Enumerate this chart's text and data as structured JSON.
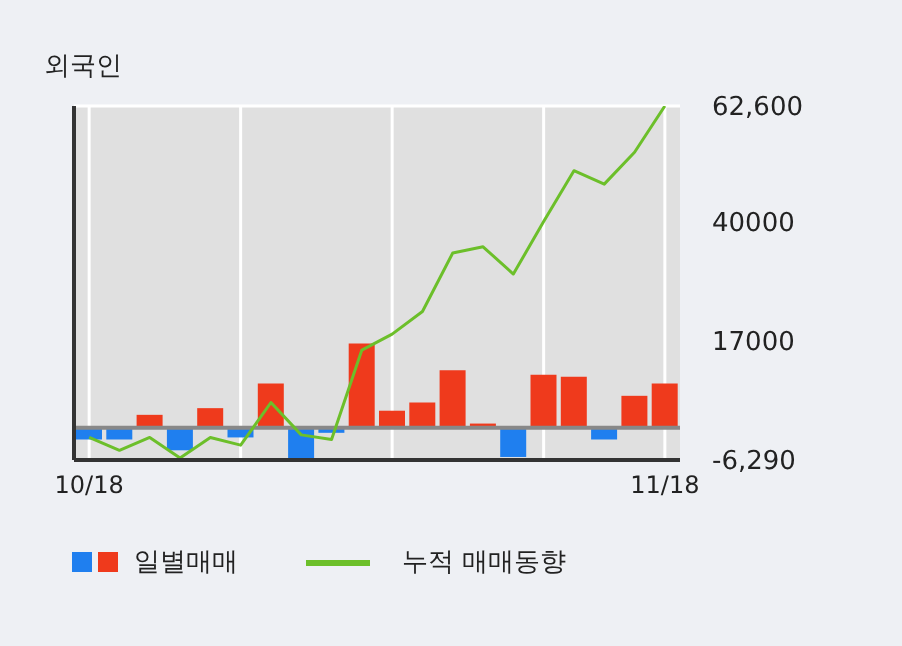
{
  "chart_data": {
    "type": "bar",
    "title": "외국인",
    "categories": [
      "10/18",
      null,
      null,
      null,
      null,
      null,
      null,
      null,
      null,
      null,
      null,
      null,
      null,
      null,
      null,
      null,
      null,
      null,
      null,
      "11/18"
    ],
    "series": [
      {
        "name": "일별매매",
        "colors": [
          "#1f7fef",
          "#1f7fef",
          "#ef3a1c",
          "#1f7fef",
          "#ef3a1c",
          "#1f7fef",
          "#ef3a1c",
          "#1f7fef",
          "#1f7fef",
          "#ef3a1c",
          "#ef3a1c",
          "#ef3a1c",
          "#ef3a1c",
          "#ef3a1c",
          "#1f7fef",
          "#ef3a1c",
          "#ef3a1c",
          "#1f7fef",
          "#ef3a1c",
          "#ef3a1c"
        ],
        "values": [
          -2300,
          -2300,
          2500,
          -4400,
          3800,
          -1900,
          8600,
          -6200,
          -1000,
          16400,
          3300,
          4900,
          11200,
          800,
          -5700,
          10300,
          9900,
          -2300,
          6200,
          8600
        ]
      },
      {
        "type": "line",
        "name": "누적 매매동향",
        "color": "#6cbf2a",
        "values": [
          -1900,
          -4400,
          -1900,
          -5900,
          -1900,
          -3400,
          4900,
          -1400,
          -2300,
          15100,
          18200,
          22600,
          34000,
          35200,
          29900,
          40100,
          50000,
          47400,
          53600,
          62600
        ]
      }
    ],
    "ylim": [
      -6290,
      62600
    ],
    "yticks": [
      {
        "value": -6290,
        "label": "-6,290"
      },
      17000,
      40000,
      {
        "value": 62600,
        "label": "62,600"
      }
    ],
    "ref_lines": [
      {
        "axis": "y",
        "value": 0,
        "color": "#888888"
      }
    ],
    "grid": true,
    "legend": "bottom left"
  }
}
